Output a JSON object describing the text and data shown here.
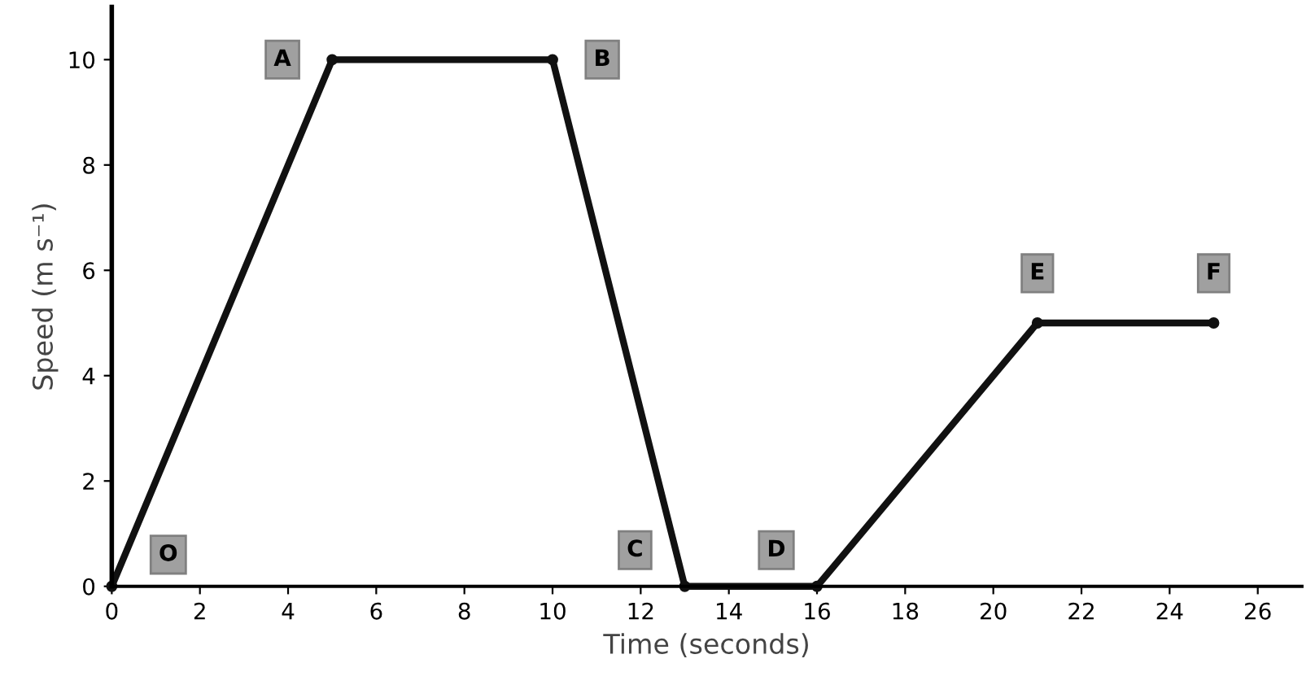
{
  "chart_data": {
    "type": "line",
    "xlabel": "Time (seconds)",
    "ylabel": "Speed (m s⁻¹)",
    "x": [
      0,
      5,
      10,
      13,
      16,
      21,
      25
    ],
    "series": [
      {
        "color": "#111111",
        "values": [
          0,
          10,
          10,
          0,
          0,
          5,
          5
        ]
      }
    ],
    "xlim": [
      0,
      27
    ],
    "ylim": [
      0,
      11
    ],
    "xticks": [
      0,
      2,
      4,
      6,
      8,
      10,
      12,
      14,
      16,
      18,
      20,
      22,
      24,
      26
    ],
    "yticks": [
      0,
      2,
      4,
      6,
      8,
      10
    ],
    "grid": false,
    "marker": "circle",
    "line_style": "solid",
    "annotations": [
      {
        "text": "O",
        "x": 0,
        "y": 0
      },
      {
        "text": "A",
        "x": 5,
        "y": 10
      },
      {
        "text": "B",
        "x": 10,
        "y": 10
      },
      {
        "text": "C",
        "x": 13,
        "y": 0
      },
      {
        "text": "D",
        "x": 16,
        "y": 0
      },
      {
        "text": "E",
        "x": 21,
        "y": 5
      },
      {
        "text": "F",
        "x": 25,
        "y": 5
      }
    ]
  }
}
